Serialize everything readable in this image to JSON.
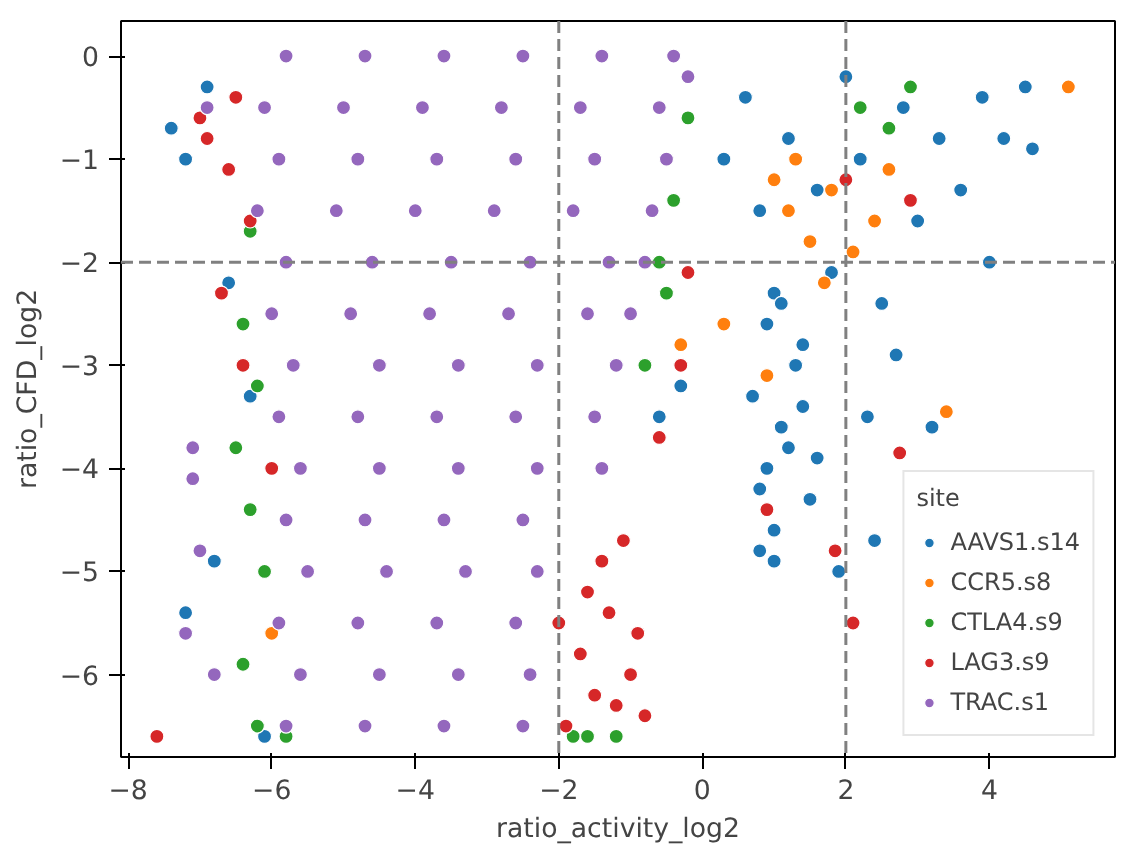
{
  "chart_data": {
    "type": "scatter",
    "xlabel": "ratio_activity_log2",
    "ylabel": "ratio_CFD_log2",
    "legend_title": "site",
    "legend": "bottom right",
    "grid": false,
    "marker": "circle",
    "xlim": [
      -8.1,
      5.75
    ],
    "ylim": [
      -6.8,
      0.34
    ],
    "xticks": [
      -8,
      -6,
      -4,
      -2,
      0,
      2,
      4
    ],
    "yticks": [
      -6,
      -5,
      -4,
      -3,
      -2,
      -1,
      0
    ],
    "ref_lines": [
      {
        "axis": "x",
        "value": -2,
        "color": "#808080",
        "line_style": "dashed"
      },
      {
        "axis": "x",
        "value": 2,
        "color": "#808080",
        "line_style": "dashed"
      },
      {
        "axis": "y",
        "value": -2,
        "color": "#808080",
        "line_style": "dashed"
      }
    ],
    "series": [
      {
        "name": "AAVS1.s14",
        "color": "#1f77b4",
        "x": [
          -7.4,
          -7.2,
          -6.9,
          -6.6,
          -6.3,
          -7.2,
          -6.8,
          -6.1,
          -0.6,
          -0.3,
          0.3,
          0.6,
          0.8,
          1.0,
          1.2,
          1.4,
          1.6,
          1.8,
          2.0,
          2.2,
          2.5,
          2.8,
          3.0,
          3.3,
          3.6,
          3.9,
          4.2,
          4.5,
          0.7,
          0.9,
          1.1,
          1.3,
          1.5,
          0.8,
          1.0,
          1.2,
          0.9,
          1.1,
          1.4,
          0.8,
          1.0,
          1.6,
          2.3,
          2.7,
          3.2,
          4.0,
          4.6,
          1.9,
          2.4
        ],
        "values": [
          -0.7,
          -1.0,
          -0.3,
          -2.2,
          -3.3,
          -5.4,
          -4.9,
          -6.6,
          -3.5,
          -3.2,
          -1.0,
          -0.4,
          -1.5,
          -2.3,
          -0.8,
          -2.8,
          -1.3,
          -2.1,
          -0.2,
          -1.0,
          -2.4,
          -0.5,
          -1.6,
          -0.8,
          -1.3,
          -0.4,
          -0.8,
          -0.3,
          -3.3,
          -4.0,
          -3.6,
          -3.0,
          -4.3,
          -4.8,
          -4.6,
          -3.8,
          -2.6,
          -2.4,
          -3.4,
          -4.2,
          -4.9,
          -3.9,
          -3.5,
          -2.9,
          -3.6,
          -2.0,
          -0.9,
          -5.0,
          -4.7
        ]
      },
      {
        "name": "CCR5.s8",
        "color": "#ff7f0e",
        "x": [
          5.1,
          3.4,
          0.3,
          1.2,
          1.5,
          1.8,
          2.1,
          1.3,
          1.7,
          2.4,
          1.0,
          -6.0,
          -0.3,
          0.9,
          2.6
        ],
        "values": [
          -0.3,
          -3.45,
          -2.6,
          -1.5,
          -1.8,
          -1.3,
          -1.9,
          -1.0,
          -2.2,
          -1.6,
          -1.2,
          -5.6,
          -2.8,
          -3.1,
          -1.1
        ]
      },
      {
        "name": "CTLA4.s9",
        "color": "#2ca02c",
        "x": [
          -6.4,
          -6.2,
          -6.5,
          -6.3,
          -6.1,
          -6.4,
          -6.2,
          -5.8,
          -0.6,
          -0.4,
          -0.2,
          -0.8,
          -0.5,
          -1.8,
          2.2,
          2.6,
          2.9,
          -1.6,
          -6.3,
          -1.2
        ],
        "values": [
          -2.6,
          -3.2,
          -3.8,
          -4.4,
          -5.0,
          -5.9,
          -6.5,
          -6.6,
          -2.0,
          -1.4,
          -0.6,
          -3.0,
          -2.3,
          -6.6,
          -0.5,
          -0.7,
          -0.3,
          -6.6,
          -1.7,
          -6.6
        ]
      },
      {
        "name": "LAG3.s9",
        "color": "#d62728",
        "x": [
          -7.6,
          -7.0,
          -6.9,
          -6.6,
          -6.5,
          -6.3,
          -6.7,
          -6.4,
          -6.0,
          -2.0,
          -1.7,
          -1.5,
          -1.3,
          -1.0,
          -0.8,
          -1.9,
          -1.6,
          -1.2,
          -0.9,
          -1.4,
          -1.1,
          0.9,
          1.85,
          2.1,
          2.75,
          2.0,
          2.9,
          -0.2,
          -0.6,
          -0.3
        ],
        "values": [
          -6.6,
          -0.6,
          -0.8,
          -1.1,
          -0.4,
          -1.6,
          -2.3,
          -3.0,
          -4.0,
          -5.5,
          -5.8,
          -6.2,
          -5.4,
          -6.0,
          -6.4,
          -6.5,
          -5.2,
          -6.3,
          -5.6,
          -4.9,
          -4.7,
          -4.4,
          -4.8,
          -5.5,
          -3.85,
          -1.2,
          -1.4,
          -2.1,
          -3.7,
          -3.0
        ]
      },
      {
        "name": "TRAC.s1",
        "color": "#9467bd",
        "x": [
          -5.8,
          -4.7,
          -3.6,
          -2.5,
          -1.4,
          -0.4,
          -6.1,
          -5.0,
          -3.9,
          -2.8,
          -1.7,
          -0.6,
          -5.9,
          -4.8,
          -3.7,
          -2.6,
          -1.5,
          -0.5,
          -6.2,
          -5.1,
          -4.0,
          -2.9,
          -1.8,
          -0.7,
          -5.8,
          -4.6,
          -3.5,
          -2.4,
          -1.3,
          -0.8,
          -6.0,
          -4.9,
          -3.8,
          -2.7,
          -1.6,
          -1.0,
          -5.7,
          -4.5,
          -3.4,
          -2.3,
          -1.2,
          -5.9,
          -4.8,
          -3.7,
          -2.6,
          -1.5,
          -5.6,
          -4.5,
          -3.4,
          -2.3,
          -1.4,
          -5.8,
          -4.7,
          -3.6,
          -2.5,
          -5.5,
          -4.4,
          -3.3,
          -2.3,
          -5.9,
          -4.8,
          -3.7,
          -2.6,
          -5.6,
          -4.5,
          -3.4,
          -2.4,
          -5.8,
          -4.7,
          -3.6,
          -2.5,
          -7.1,
          -7.1,
          -7.0,
          -7.2,
          -6.8,
          -0.2,
          -6.9
        ],
        "values": [
          0,
          0,
          0,
          0,
          0,
          0,
          -0.5,
          -0.5,
          -0.5,
          -0.5,
          -0.5,
          -0.5,
          -1,
          -1,
          -1,
          -1,
          -1,
          -1,
          -1.5,
          -1.5,
          -1.5,
          -1.5,
          -1.5,
          -1.5,
          -2,
          -2,
          -2,
          -2,
          -2,
          -2,
          -2.5,
          -2.5,
          -2.5,
          -2.5,
          -2.5,
          -2.5,
          -3,
          -3,
          -3,
          -3,
          -3,
          -3.5,
          -3.5,
          -3.5,
          -3.5,
          -3.5,
          -4,
          -4,
          -4,
          -4,
          -4,
          -4.5,
          -4.5,
          -4.5,
          -4.5,
          -5,
          -5,
          -5,
          -5,
          -5.5,
          -5.5,
          -5.5,
          -5.5,
          -6,
          -6,
          -6,
          -6,
          -6.5,
          -6.5,
          -6.5,
          -6.5,
          -4.1,
          -3.8,
          -4.8,
          -5.6,
          -6.0,
          -0.2,
          -0.5
        ]
      }
    ]
  }
}
